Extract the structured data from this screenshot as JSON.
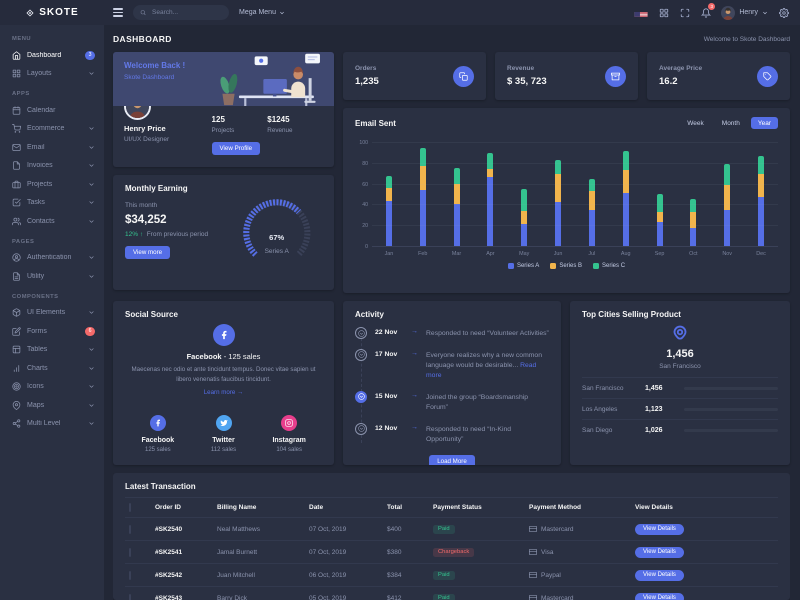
{
  "brand": "SKOTE",
  "topbar": {
    "search_placeholder": "Search...",
    "mega_menu_label": "Mega Menu",
    "user_name": "Henry",
    "notification_count": "3"
  },
  "page": {
    "title": "DASHBOARD",
    "breadcrumb": "Welcome to Skote Dashboard"
  },
  "sidebar": {
    "sections": [
      {
        "label": "MENU",
        "items": [
          {
            "label": "Dashboard",
            "icon": "home",
            "badge": "3",
            "badge_color": "#556ee6",
            "active": true
          },
          {
            "label": "Layouts",
            "icon": "grid",
            "arrow": true
          }
        ]
      },
      {
        "label": "APPS",
        "items": [
          {
            "label": "Calendar",
            "icon": "calendar"
          },
          {
            "label": "Ecommerce",
            "icon": "cart",
            "arrow": true
          },
          {
            "label": "Email",
            "icon": "mail",
            "arrow": true
          },
          {
            "label": "Invoices",
            "icon": "file",
            "arrow": true
          },
          {
            "label": "Projects",
            "icon": "briefcase",
            "arrow": true
          },
          {
            "label": "Tasks",
            "icon": "check-square",
            "arrow": true
          },
          {
            "label": "Contacts",
            "icon": "users",
            "arrow": true
          }
        ]
      },
      {
        "label": "PAGES",
        "items": [
          {
            "label": "Authentication",
            "icon": "user-circle",
            "arrow": true
          },
          {
            "label": "Utility",
            "icon": "file-text",
            "arrow": true
          }
        ]
      },
      {
        "label": "COMPONENTS",
        "items": [
          {
            "label": "UI Elements",
            "icon": "box",
            "arrow": true
          },
          {
            "label": "Forms",
            "icon": "edit",
            "badge": "6",
            "badge_color": "#f46a6a"
          },
          {
            "label": "Tables",
            "icon": "table",
            "arrow": true
          },
          {
            "label": "Charts",
            "icon": "bar-chart",
            "arrow": true
          },
          {
            "label": "Icons",
            "icon": "target",
            "arrow": true
          },
          {
            "label": "Maps",
            "icon": "map-pin",
            "arrow": true
          },
          {
            "label": "Multi Level",
            "icon": "share",
            "arrow": true
          }
        ]
      }
    ]
  },
  "welcome": {
    "title": "Welcome Back !",
    "subtitle": "Skote Dashboard",
    "name": "Henry Price",
    "role": "UI/UX Designer",
    "projects_value": "125",
    "projects_label": "Projects",
    "revenue_value": "$1245",
    "revenue_label": "Revenue",
    "button_label": "View Profile"
  },
  "monthly": {
    "title": "Monthly Earning",
    "period_label": "This month",
    "amount": "$34,252",
    "change": "12%",
    "change_arrow": "↑",
    "change_note": "From previous period",
    "button_label": "View more",
    "gauge_value": "67%",
    "gauge_label": "Series A"
  },
  "stats": [
    {
      "label": "Orders",
      "value": "1,235",
      "icon": "copy"
    },
    {
      "label": "Revenue",
      "value": "$ 35, 723",
      "icon": "archive"
    },
    {
      "label": "Average Price",
      "value": "16.2",
      "icon": "tag"
    }
  ],
  "email_sent": {
    "title": "Email Sent",
    "tabs": [
      "Week",
      "Month",
      "Year"
    ],
    "active_tab": "Year"
  },
  "chart_data": [
    {
      "type": "bar",
      "stacked": true,
      "title": "Email Sent",
      "categories": [
        "Jan",
        "Feb",
        "Mar",
        "Apr",
        "May",
        "Jun",
        "Jul",
        "Aug",
        "Sep",
        "Oct",
        "Nov",
        "Dec"
      ],
      "series": [
        {
          "name": "Series A",
          "color": "#556ee6",
          "values": [
            44,
            55,
            41,
            67,
            22,
            43,
            36,
            52,
            24,
            18,
            36,
            48
          ]
        },
        {
          "name": "Series B",
          "color": "#f1b44c",
          "values": [
            13,
            23,
            20,
            8,
            13,
            27,
            18,
            22,
            10,
            16,
            24,
            22
          ]
        },
        {
          "name": "Series C",
          "color": "#34c38f",
          "values": [
            11,
            17,
            15,
            15,
            21,
            14,
            11,
            18,
            17,
            12,
            20,
            18
          ]
        }
      ],
      "ylim": [
        0,
        100
      ],
      "yticks": [
        0,
        20,
        40,
        60,
        80,
        100
      ],
      "grid": true,
      "legend_position": "bottom"
    },
    {
      "type": "radial-gauge",
      "title": "Monthly Earning",
      "value_pct": 67,
      "label": "Series A",
      "color": "#556ee6",
      "track_color": "#3a4158"
    },
    {
      "type": "bar",
      "orientation": "horizontal",
      "title": "Top Cities Selling Product",
      "categories": [
        "San Francisco",
        "Los Angeles",
        "San Diego"
      ],
      "values": [
        1456,
        1123,
        1026
      ],
      "colors": [
        "#556ee6",
        "#34c38f",
        "#f1b44c"
      ]
    }
  ],
  "social": {
    "title": "Social Source",
    "top_network": "Facebook",
    "top_sales": "- 125 sales",
    "description": "Maecenas nec odio et ante tincidunt tempus. Donec vitae sapien ut libero venenatis faucibus tincidunt.",
    "link_label": "Learn more →",
    "items": [
      {
        "name": "Facebook",
        "sales": "125 sales",
        "color": "#556ee6",
        "icon": "facebook"
      },
      {
        "name": "Twitter",
        "sales": "112 sales",
        "color": "#50a5f1",
        "icon": "twitter"
      },
      {
        "name": "Instagram",
        "sales": "104 sales",
        "color": "#e83e8c",
        "icon": "instagram"
      }
    ]
  },
  "activity": {
    "title": "Activity",
    "button_label": "Load More",
    "items": [
      {
        "date": "22 Nov",
        "text": "Responded to need “Volunteer Activities”"
      },
      {
        "date": "17 Nov",
        "text": "Everyone realizes why a new common language would be desirable...",
        "link": "Read more"
      },
      {
        "date": "15 Nov",
        "text": "Joined the group “Boardsmanship Forum”",
        "active": true
      },
      {
        "date": "12 Nov",
        "text": "Responded to need “In-Kind Opportunity”"
      }
    ]
  },
  "top_cities": {
    "title": "Top Cities Selling Product",
    "highlight_value": "1,456",
    "highlight_city": "San Francisco",
    "rows": [
      {
        "city": "San Francisco",
        "value": "1,456",
        "color": "#556ee6",
        "pct": 100
      },
      {
        "city": "Los Angeles",
        "value": "1,123",
        "color": "#34c38f",
        "pct": 84
      },
      {
        "city": "San Diego",
        "value": "1,026",
        "color": "#f1b44c",
        "pct": 71
      }
    ]
  },
  "transactions": {
    "title": "Latest Transaction",
    "headers": [
      "Order ID",
      "Billing Name",
      "Date",
      "Total",
      "Payment Status",
      "Payment Method",
      "View Details"
    ],
    "button_label": "View Details",
    "rows": [
      {
        "order_id": "#SK2540",
        "billing_name": "Neal Matthews",
        "date": "07 Oct, 2019",
        "total": "$400",
        "status": "Paid",
        "method": "Mastercard"
      },
      {
        "order_id": "#SK2541",
        "billing_name": "Jamal Burnett",
        "date": "07 Oct, 2019",
        "total": "$380",
        "status": "Chargeback",
        "method": "Visa"
      },
      {
        "order_id": "#SK2542",
        "billing_name": "Juan Mitchell",
        "date": "06 Oct, 2019",
        "total": "$384",
        "status": "Paid",
        "method": "Paypal"
      },
      {
        "order_id": "#SK2543",
        "billing_name": "Barry Dick",
        "date": "05 Oct, 2019",
        "total": "$412",
        "status": "Paid",
        "method": "Mastercard"
      }
    ]
  },
  "colors": {
    "primary": "#556ee6",
    "success": "#34c38f",
    "warning": "#f1b44c",
    "danger": "#f46a6a",
    "info": "#50a5f1"
  }
}
